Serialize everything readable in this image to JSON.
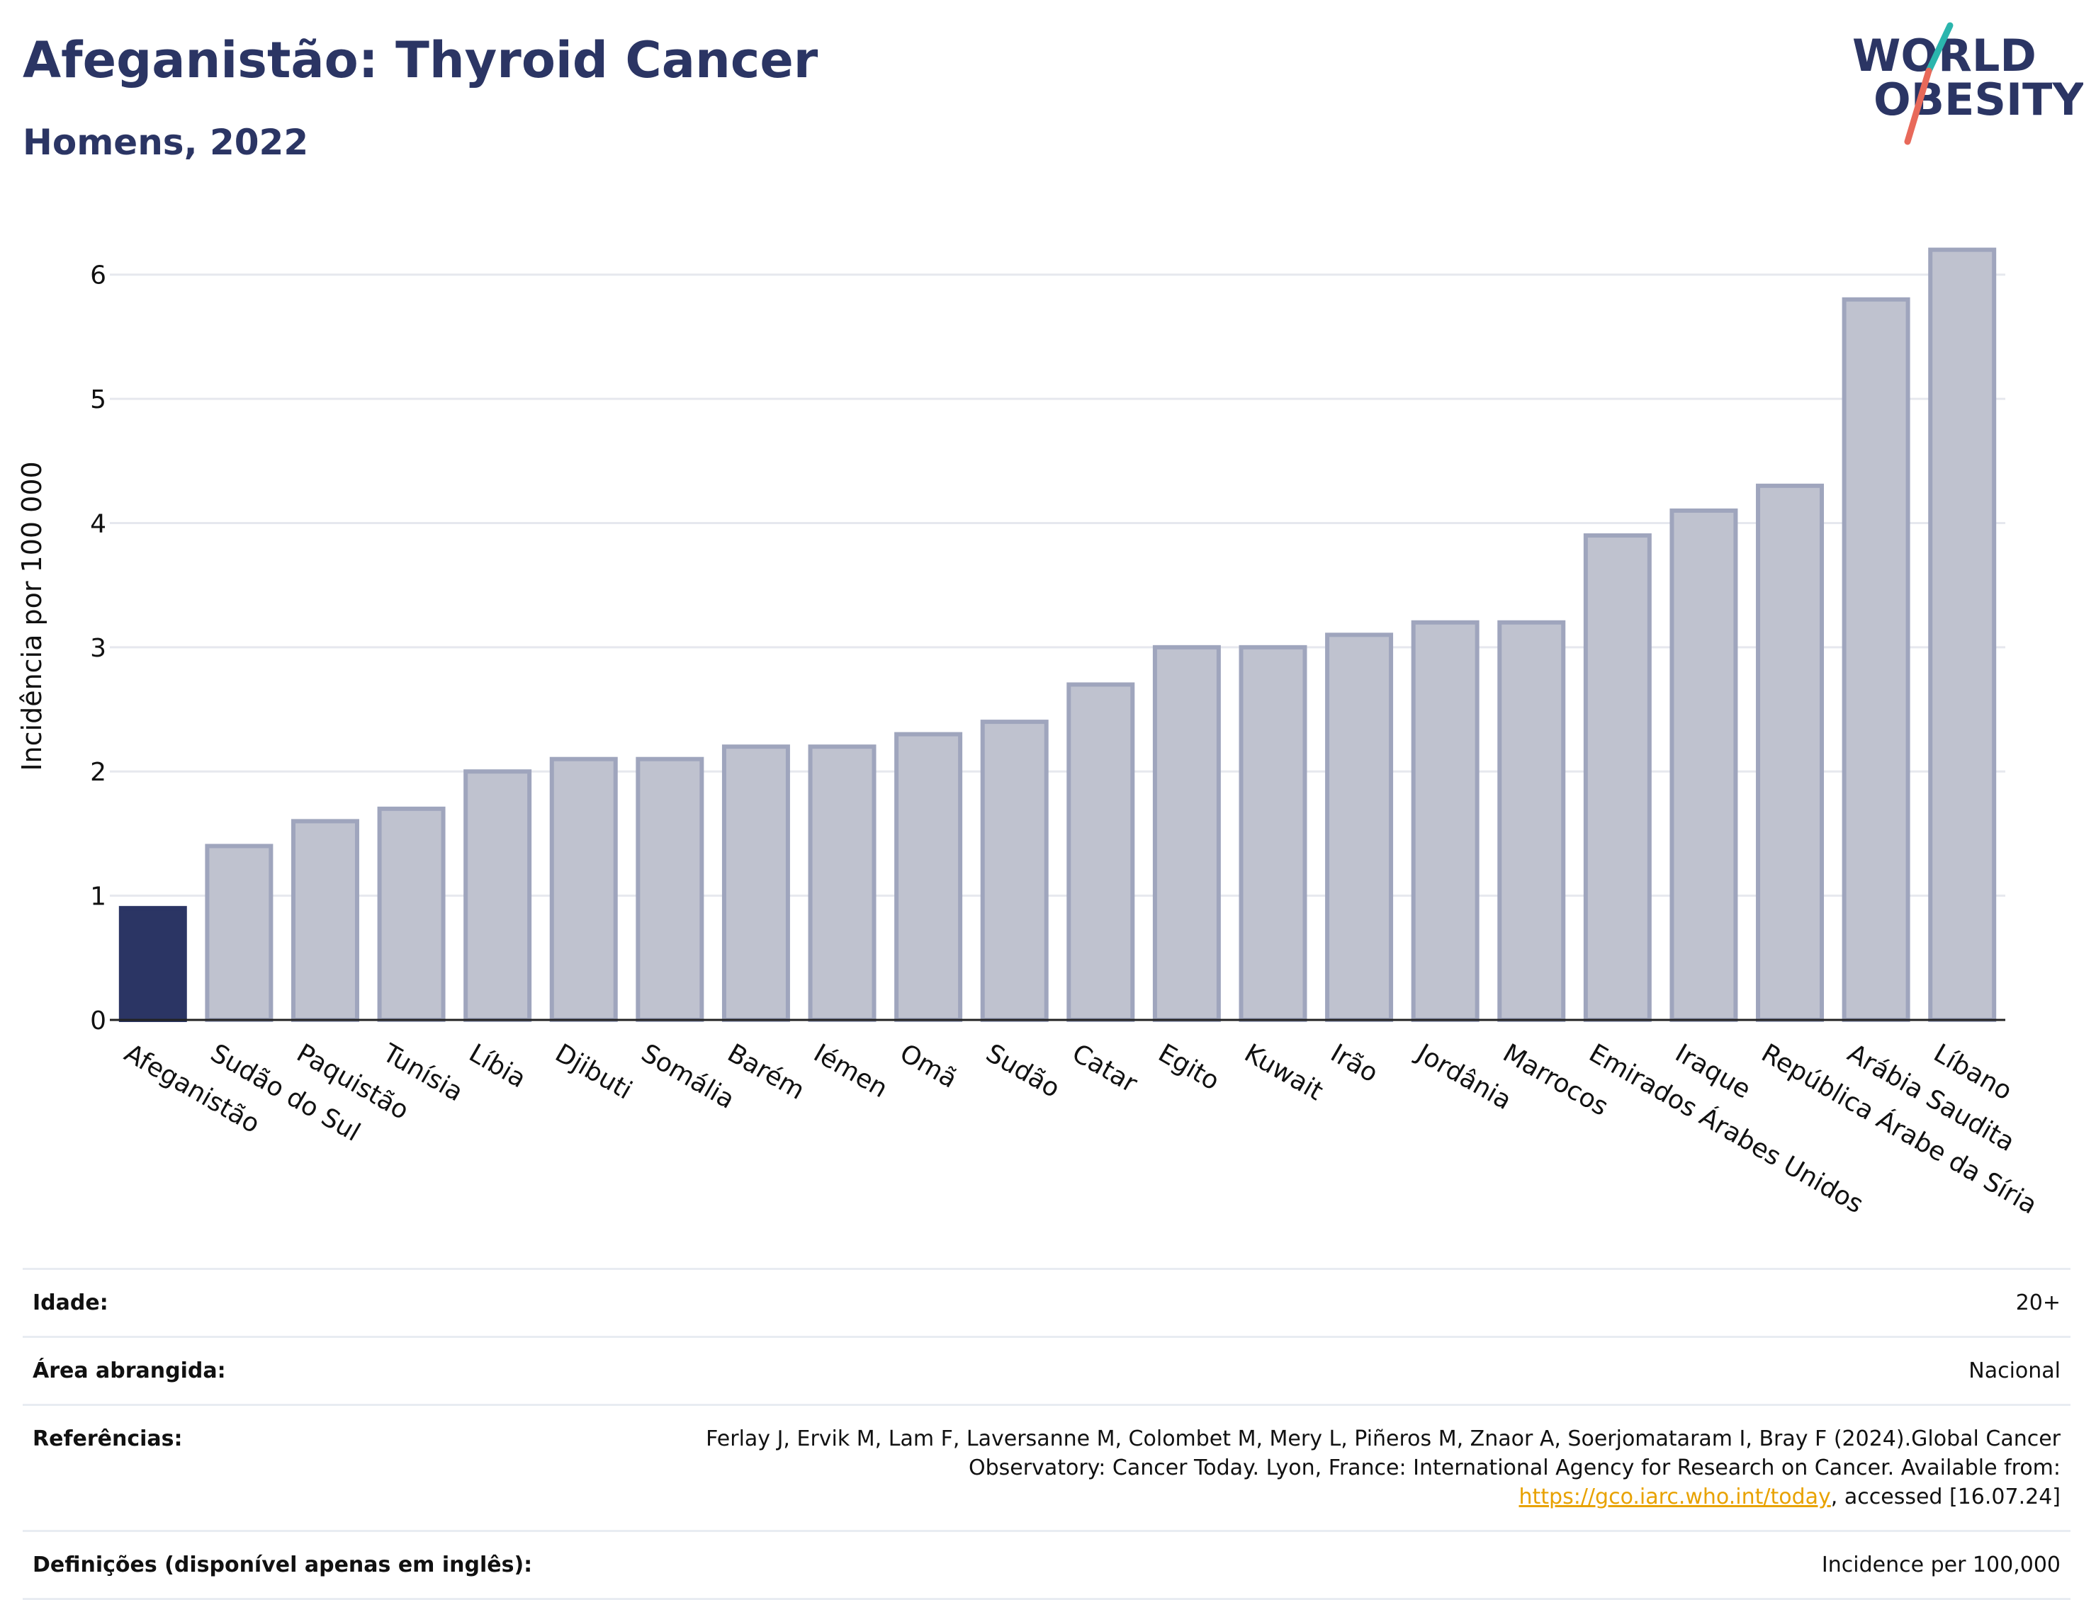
{
  "header": {
    "title": "Afeganistão: Thyroid Cancer",
    "subtitle": "Homens, 2022"
  },
  "logo": {
    "line1": "WORLD",
    "line2": "OBESITY",
    "colors": {
      "text": "#2b3564",
      "slash_top": "#2bb5ad",
      "slash_bottom": "#e8695a"
    }
  },
  "chart_data": {
    "type": "bar",
    "ylabel": "Incidência por 100 000",
    "ylim": [
      0,
      6.5
    ],
    "yticks": [
      0,
      1,
      2,
      3,
      4,
      5,
      6
    ],
    "grid": true,
    "highlight_color": "#2b3564",
    "bar_color": "#bfc2cf",
    "bar_border_color": "#9fa5bd",
    "categories": [
      "Afeganistão",
      "Sudão do Sul",
      "Paquistão",
      "Tunísia",
      "Líbia",
      "Djibuti",
      "Somália",
      "Barém",
      "Iémen",
      "Omã",
      "Sudão",
      "Catar",
      "Egito",
      "Kuwait",
      "Irão",
      "Jordânia",
      "Marrocos",
      "Emirados Árabes Unidos",
      "Iraque",
      "República Árabe da Síria",
      "Arábia Saudita",
      "Líbano"
    ],
    "values": [
      0.9,
      1.4,
      1.6,
      1.7,
      2.0,
      2.1,
      2.1,
      2.2,
      2.2,
      2.3,
      2.4,
      2.7,
      3.0,
      3.0,
      3.1,
      3.2,
      3.2,
      3.9,
      4.1,
      4.3,
      5.8,
      6.2
    ],
    "highlight": "Afeganistão"
  },
  "info": {
    "age_label": "Idade:",
    "age_value": "20+",
    "area_label": "Área abrangida:",
    "area_value": "Nacional",
    "ref_label": "Referências:",
    "ref_text_before": "Ferlay J, Ervik M, Lam F, Laversanne M, Colombet M, Mery L, Piñeros M, Znaor A, Soerjomataram I, Bray F (2024).Global Cancer Observatory: Cancer Today. Lyon, France: International Agency for Research on Cancer. Available from: ",
    "ref_link": "https://gco.iarc.who.int/today",
    "ref_text_after": ", accessed [16.07.24]",
    "def_label": "Definições (disponível apenas em inglês):",
    "def_value": "Incidence per 100,000"
  }
}
